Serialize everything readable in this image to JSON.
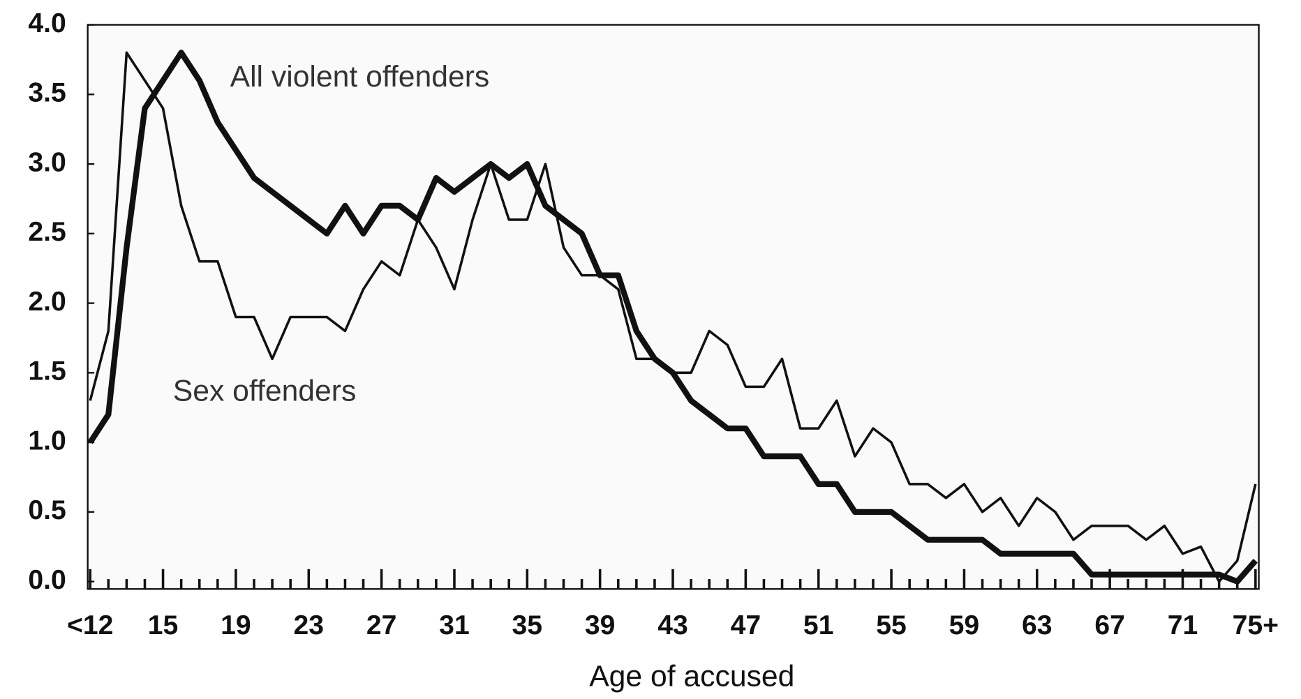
{
  "chart_data": {
    "type": "line",
    "categories": [
      "<12",
      null,
      null,
      null,
      "15",
      null,
      null,
      null,
      "19",
      null,
      null,
      null,
      "23",
      null,
      null,
      null,
      "27",
      null,
      null,
      null,
      "31",
      null,
      null,
      null,
      "35",
      null,
      null,
      null,
      "39",
      null,
      null,
      null,
      "43",
      null,
      null,
      null,
      "47",
      null,
      null,
      null,
      "51",
      null,
      null,
      null,
      "55",
      null,
      null,
      null,
      "59",
      null,
      null,
      null,
      "63",
      null,
      null,
      null,
      "67",
      null,
      null,
      null,
      "71",
      null,
      null,
      null,
      "75+"
    ],
    "series": [
      {
        "name": "All violent offenders",
        "color": "#111111",
        "values": [
          1.0,
          1.2,
          2.4,
          3.4,
          3.6,
          3.8,
          3.6,
          3.3,
          3.1,
          2.9,
          2.8,
          2.7,
          2.6,
          2.5,
          2.7,
          2.5,
          2.7,
          2.7,
          2.6,
          2.9,
          2.8,
          2.9,
          3.0,
          2.9,
          3.0,
          2.7,
          2.6,
          2.5,
          2.2,
          2.2,
          1.8,
          1.6,
          1.5,
          1.3,
          1.2,
          1.1,
          1.1,
          0.9,
          0.9,
          0.9,
          0.7,
          0.7,
          0.5,
          0.5,
          0.5,
          0.4,
          0.3,
          0.3,
          0.3,
          0.3,
          0.2,
          0.2,
          0.2,
          0.2,
          0.2,
          0.05,
          0.05,
          0.05,
          0.05,
          0.05,
          0.05,
          0.05,
          0.05,
          0.0,
          0.15
        ]
      },
      {
        "name": "Sex offenders",
        "color": "#111111",
        "values": [
          1.3,
          1.8,
          3.8,
          3.6,
          3.4,
          2.7,
          2.3,
          2.3,
          1.9,
          1.9,
          1.6,
          1.9,
          1.9,
          1.9,
          1.8,
          2.1,
          2.3,
          2.2,
          2.6,
          2.4,
          2.1,
          2.6,
          3.0,
          2.6,
          2.6,
          3.0,
          2.4,
          2.2,
          2.2,
          2.1,
          1.6,
          1.6,
          1.5,
          1.5,
          1.8,
          1.7,
          1.4,
          1.4,
          1.6,
          1.1,
          1.1,
          1.3,
          0.9,
          1.1,
          1.0,
          0.7,
          0.7,
          0.6,
          0.7,
          0.5,
          0.6,
          0.4,
          0.6,
          0.5,
          0.3,
          0.4,
          0.4,
          0.4,
          0.3,
          0.4,
          0.2,
          0.25,
          0.0,
          0.15,
          0.7
        ]
      }
    ],
    "x_label": "Age of accused",
    "ylim": [
      0,
      4
    ],
    "yticks": [
      {
        "value": 0,
        "label": "0.0"
      },
      {
        "value": 0.5,
        "label": "0.5"
      },
      {
        "value": 1,
        "label": "1.0"
      },
      {
        "value": 1.5,
        "label": "1.5"
      },
      {
        "value": 2,
        "label": "2.0"
      },
      {
        "value": 2.5,
        "label": "2.5"
      },
      {
        "value": 3,
        "label": "3.0"
      },
      {
        "value": 3.5,
        "label": "3.5"
      },
      {
        "value": 4,
        "label": "4.0"
      }
    ],
    "grid": false
  }
}
